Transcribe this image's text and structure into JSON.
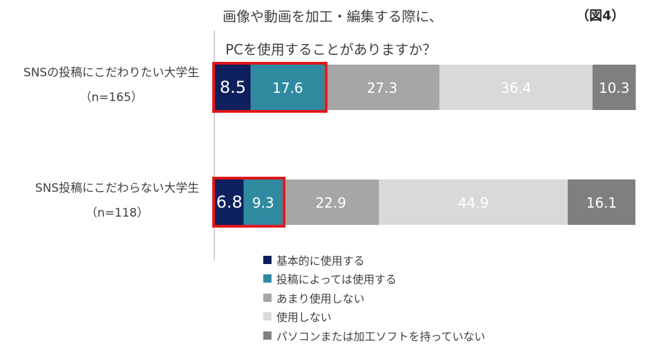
{
  "header": {
    "title_line1": "画像や動画を加工・編集する際に、",
    "title_line2": "PCを使用することがありますか？",
    "figure_no": "（図4）"
  },
  "chart_data": {
    "type": "bar",
    "orientation": "horizontal",
    "stacked": true,
    "unit": "%",
    "xlim": [
      0,
      100
    ],
    "grid": false,
    "legend_position": "bottom",
    "categories": [
      {
        "label": "SNSの投稿にこだわりたい大学生",
        "n": "（n=165）"
      },
      {
        "label": "SNS投稿にこだわらない大学生",
        "n": "（n=118）"
      }
    ],
    "series": [
      {
        "name": "基本的に使用する",
        "color": "#0d1f5c",
        "values": [
          8.5,
          6.8
        ]
      },
      {
        "name": "投稿によっては使用する",
        "color": "#2f8aa0",
        "values": [
          17.6,
          9.3
        ]
      },
      {
        "name": "あまり使用しない",
        "color": "#a6a6a6",
        "values": [
          27.3,
          22.9
        ]
      },
      {
        "name": "使用しない",
        "color": "#d9d9d9",
        "values": [
          36.4,
          44.9
        ]
      },
      {
        "name": "パソコンまたは加工ソフトを持っていない",
        "color": "#7f7f7f",
        "values": [
          10.3,
          16.1
        ]
      }
    ],
    "highlight": {
      "series_indices": [
        0,
        1
      ],
      "color": "#e0161b"
    }
  }
}
